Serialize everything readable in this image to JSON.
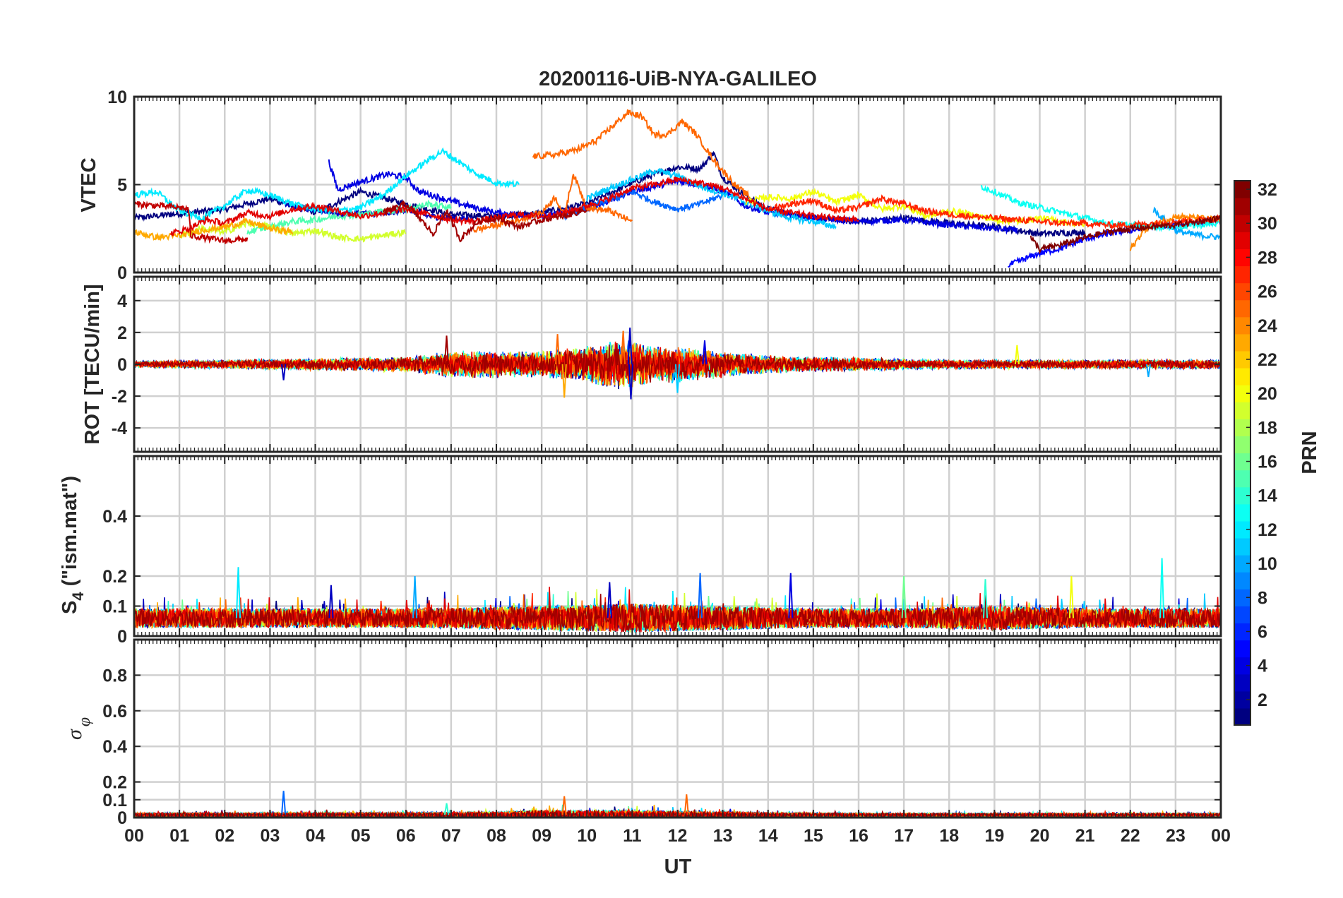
{
  "chart_data": {
    "type": "line",
    "title": "20200116-UiB-NYA-GALILEO",
    "xlabel": "UT",
    "x_tick_labels": [
      "00",
      "01",
      "02",
      "03",
      "04",
      "05",
      "06",
      "07",
      "08",
      "09",
      "10",
      "11",
      "12",
      "13",
      "14",
      "15",
      "16",
      "17",
      "18",
      "19",
      "20",
      "21",
      "22",
      "23",
      "00"
    ],
    "xlim": [
      0,
      24
    ],
    "grid": true,
    "colorbar": {
      "label": "PRN",
      "range": [
        1,
        32
      ],
      "ticks": [
        "2",
        "4",
        "6",
        "8",
        "10",
        "12",
        "14",
        "16",
        "18",
        "20",
        "22",
        "24",
        "26",
        "28",
        "30",
        "32"
      ],
      "colormap": "jet"
    },
    "panels": [
      {
        "id": "vtec",
        "ylabel": "VTEC",
        "ylim": [
          0,
          10
        ],
        "y_ticks": [
          0,
          5,
          10
        ],
        "y_tick_labels": [
          "0",
          "5",
          "10"
        ],
        "series": [
          {
            "prn": 1,
            "x": [
              0,
              2,
              3,
              4,
              5,
              6,
              7,
              8,
              9,
              10,
              11,
              11.5,
              12,
              12.5,
              12.8,
              13,
              13.5,
              14,
              15,
              16,
              17,
              18,
              19,
              20,
              21
            ],
            "y": [
              3.1,
              3.6,
              4.2,
              3.4,
              4.6,
              3.9,
              3.3,
              3.2,
              3.4,
              3.9,
              5.1,
              5.6,
              6.0,
              5.9,
              6.8,
              5.4,
              4.4,
              3.6,
              3.1,
              2.9,
              3.1,
              2.8,
              2.6,
              2.2,
              2.3
            ]
          },
          {
            "prn": 3,
            "x": [
              3.2,
              3.5,
              3.8,
              4.2,
              4.6,
              5.0,
              5.5,
              6.0,
              6.5,
              7.0,
              7.5
            ],
            "y": [
              4.1,
              3.8,
              3.6,
              3.5,
              3.3,
              3.4,
              3.3,
              3.6,
              3.2,
              3.1,
              3.0
            ]
          },
          {
            "prn": 4,
            "x": [
              4.3,
              4.5,
              4.8,
              5.2,
              5.6,
              6.0,
              6.3,
              6.7,
              7.2,
              8.0,
              9.0,
              10.0,
              11.0,
              12.0,
              12.5,
              13.0,
              13.5,
              14.0,
              15.0,
              16.0,
              17.0,
              18.0,
              19.0,
              19.5
            ],
            "y": [
              6.3,
              4.7,
              5.0,
              5.3,
              5.6,
              5.4,
              4.6,
              4.3,
              3.9,
              3.4,
              3.2,
              3.6,
              4.6,
              5.2,
              5.0,
              4.6,
              3.8,
              3.4,
              3.1,
              2.9,
              3.0,
              2.7,
              2.5,
              2.4
            ]
          },
          {
            "prn": 5,
            "x": [
              19.3,
              19.7,
              20.0,
              20.5,
              21.0,
              21.5,
              22.0,
              22.5,
              23.0,
              23.5,
              24.0
            ],
            "y": [
              0.4,
              0.8,
              1.1,
              1.4,
              1.9,
              2.2,
              2.4,
              2.6,
              2.7,
              2.9,
              3.0
            ]
          },
          {
            "prn": 8,
            "x": [
              9.5,
              10.0,
              10.5,
              11.0,
              11.5,
              12.0,
              12.5,
              13.0
            ],
            "y": [
              3.2,
              3.7,
              4.1,
              4.6,
              4.0,
              3.6,
              3.9,
              4.4
            ]
          },
          {
            "prn": 10,
            "x": [
              22.5,
              22.8,
              23.0,
              23.3,
              23.6,
              24.0
            ],
            "y": [
              3.6,
              2.9,
              2.4,
              2.2,
              2.1,
              2.0
            ]
          },
          {
            "prn": 11,
            "x": [
              10.0,
              10.5,
              11.0,
              11.5,
              12.0,
              12.5,
              13.0,
              13.5,
              14.0,
              14.5,
              15.0,
              15.5
            ],
            "y": [
              4.2,
              4.8,
              5.3,
              5.8,
              5.5,
              4.9,
              4.5,
              4.0,
              3.5,
              3.1,
              2.9,
              2.6
            ]
          },
          {
            "prn": 12,
            "x": [
              0,
              0.5,
              1.0,
              1.5,
              2.0,
              2.5,
              3.0,
              3.5,
              4.0,
              4.5,
              5.0,
              5.5,
              6.0,
              6.5,
              6.8,
              7.0,
              7.5,
              8.0,
              8.5
            ],
            "y": [
              4.4,
              4.6,
              3.5,
              3.1,
              3.8,
              4.7,
              4.4,
              3.9,
              3.6,
              3.5,
              3.7,
              4.4,
              5.5,
              6.4,
              6.9,
              6.6,
              5.7,
              5.1,
              5.0
            ]
          },
          {
            "prn": 13,
            "x": [
              18.7,
              19.0,
              19.5,
              20.0,
              20.5,
              21.0,
              21.5,
              22.0,
              22.5,
              23.0,
              23.5,
              24.0
            ],
            "y": [
              4.9,
              4.6,
              4.0,
              3.7,
              3.4,
              3.1,
              2.8,
              2.7,
              2.6,
              2.6,
              2.7,
              2.8
            ]
          },
          {
            "prn": 15,
            "x": [
              2.5,
              3.0,
              3.5,
              4.0,
              4.5,
              5.0,
              5.5,
              6.0,
              6.5,
              7.0
            ],
            "y": [
              2.3,
              2.6,
              2.9,
              3.0,
              3.2,
              3.3,
              3.5,
              3.6,
              3.9,
              3.7
            ]
          },
          {
            "prn": 19,
            "x": [
              1.0,
              1.5,
              2.0,
              2.5,
              3.0,
              3.5,
              4.0,
              4.5,
              5.0,
              5.5,
              6.0
            ],
            "y": [
              2.1,
              2.5,
              2.3,
              2.8,
              2.6,
              2.2,
              2.4,
              2.0,
              1.9,
              2.1,
              2.3
            ]
          },
          {
            "prn": 20,
            "x": [
              13.5,
              14.0,
              14.5,
              15.0,
              15.5,
              16.0,
              16.5,
              17.0,
              17.5,
              18.0,
              18.5,
              19.0,
              19.5,
              20.0,
              20.5,
              21.0
            ],
            "y": [
              4.0,
              4.3,
              4.2,
              4.6,
              4.0,
              4.4,
              3.6,
              3.8,
              3.2,
              3.5,
              3.3,
              3.0,
              2.9,
              3.1,
              2.9,
              2.7
            ]
          },
          {
            "prn": 23,
            "x": [
              0,
              0.5,
              1.0,
              1.5,
              2.0,
              2.5,
              3.0,
              3.5
            ],
            "y": [
              2.3,
              2.0,
              2.1,
              2.4,
              2.6,
              2.9,
              2.5,
              2.3
            ]
          },
          {
            "prn": 25,
            "x": [
              7.5,
              8.0,
              8.5,
              9.0,
              9.3,
              9.5,
              9.7,
              10.0,
              10.5,
              11.0
            ],
            "y": [
              2.4,
              2.7,
              3.0,
              3.4,
              4.3,
              3.2,
              5.6,
              3.7,
              3.5,
              2.9
            ]
          },
          {
            "prn": 24,
            "x": [
              22.0,
              22.3,
              22.6,
              23.0,
              23.5,
              24.0
            ],
            "y": [
              1.3,
              2.4,
              2.8,
              3.2,
              3.1,
              3.0
            ]
          },
          {
            "prn": 25,
            "x": [
              8.8,
              9.3,
              9.8,
              10.2,
              10.6,
              10.9,
              11.2,
              11.5,
              11.8,
              12.1,
              12.4,
              12.8,
              13.0,
              13.3,
              13.6
            ],
            "y": [
              6.6,
              6.7,
              7.0,
              7.5,
              8.4,
              9.1,
              8.9,
              7.8,
              7.9,
              8.6,
              7.9,
              6.4,
              5.8,
              4.9,
              4.3
            ]
          },
          {
            "prn": 27,
            "x": [
              14.0,
              14.5,
              15.0,
              15.5,
              16.0,
              16.5,
              17.0,
              17.5,
              18.0,
              18.5,
              19.0,
              19.5,
              20.0,
              20.5,
              21.0,
              21.5,
              22.0,
              22.5,
              23.0,
              23.5,
              24.0
            ],
            "y": [
              3.6,
              3.9,
              4.1,
              3.5,
              3.7,
              4.2,
              3.9,
              3.5,
              3.3,
              3.2,
              3.1,
              3.0,
              2.9,
              2.8,
              2.8,
              2.7,
              2.7,
              2.8,
              2.9,
              3.0,
              3.1
            ]
          },
          {
            "prn": 29,
            "x": [
              0.8,
              1.2,
              1.6,
              2.0,
              2.5,
              3.0,
              3.5,
              4.0,
              4.5,
              5.0,
              5.5,
              6.0,
              6.5,
              7.0,
              7.5,
              8.0,
              8.5,
              9.0,
              9.5,
              10.0,
              10.5,
              11.0,
              11.5,
              12.0,
              12.5,
              13.0,
              13.5,
              14.0,
              14.5,
              15.0,
              15.5,
              16.0
            ],
            "y": [
              2.2,
              2.5,
              3.0,
              2.8,
              3.4,
              3.2,
              3.6,
              3.8,
              3.5,
              3.2,
              3.4,
              3.6,
              3.3,
              3.0,
              2.9,
              3.1,
              3.3,
              3.2,
              3.4,
              3.8,
              4.2,
              4.8,
              5.0,
              5.3,
              5.1,
              4.8,
              4.2,
              3.6,
              3.4,
              3.2,
              3.1,
              3.0
            ]
          },
          {
            "prn": 30,
            "x": [
              0,
              0.5,
              1.0,
              1.2,
              1.25,
              1.5,
              2.0,
              2.5
            ],
            "y": [
              3.9,
              3.8,
              3.7,
              3.6,
              2.1,
              2.0,
              1.8,
              1.9
            ]
          },
          {
            "prn": 31,
            "x": [
              5.5,
              6.0,
              6.3,
              6.6,
              6.9,
              7.2,
              7.6,
              8.0,
              8.5,
              9.0,
              9.5,
              10.0
            ],
            "y": [
              3.4,
              3.9,
              3.1,
              2.2,
              3.5,
              1.9,
              2.9,
              3.1,
              2.6,
              3.0,
              3.2,
              3.6
            ]
          },
          {
            "prn": 32,
            "x": [
              19.8,
              20.0,
              20.5,
              21.0,
              21.5,
              22.0,
              22.5,
              23.0,
              23.5,
              24.0
            ],
            "y": [
              2.0,
              1.3,
              1.6,
              2.0,
              2.3,
              2.5,
              2.6,
              2.7,
              2.9,
              3.1
            ]
          }
        ]
      },
      {
        "id": "rot",
        "ylabel": "ROT [TECU/min]",
        "ylim": [
          -5.5,
          5.5
        ],
        "y_ticks": [
          -4,
          -2,
          0,
          2,
          4
        ],
        "y_tick_labels": [
          "-4",
          "-2",
          "0",
          "2",
          "4"
        ],
        "baseline": 0,
        "active_intervals": [
          [
            0,
            24
          ]
        ],
        "envelope": {
          "x": [
            0,
            3,
            6,
            7,
            9,
            10,
            10.5,
            11,
            11.5,
            12,
            13,
            14,
            16,
            18,
            20,
            22,
            24
          ],
          "amplitude": [
            0.2,
            0.35,
            0.5,
            0.9,
            0.9,
            1.2,
            1.6,
            1.6,
            1.2,
            1.2,
            0.9,
            0.6,
            0.45,
            0.3,
            0.3,
            0.3,
            0.3
          ]
        },
        "spikes": [
          {
            "x": 6.9,
            "y": 1.8,
            "prn": 31
          },
          {
            "x": 9.35,
            "y": 1.9,
            "prn": 25
          },
          {
            "x": 9.5,
            "y": -2.1,
            "prn": 23
          },
          {
            "x": 10.8,
            "y": 2.1,
            "prn": 25
          },
          {
            "x": 10.95,
            "y": 2.3,
            "prn": 3
          },
          {
            "x": 10.97,
            "y": -2.2,
            "prn": 3
          },
          {
            "x": 12.6,
            "y": 1.5,
            "prn": 4
          },
          {
            "x": 12.0,
            "y": -1.8,
            "prn": 11
          },
          {
            "x": 3.3,
            "y": -1.0,
            "prn": 3
          },
          {
            "x": 19.5,
            "y": 1.2,
            "prn": 20
          },
          {
            "x": 22.4,
            "y": -0.8,
            "prn": 10
          }
        ]
      },
      {
        "id": "s4",
        "ylabel": "S4 (\"ism.mat\")",
        "ylabel_main": "S",
        "ylabel_sub": "4",
        "ylabel_rest": " (\"ism.mat\")",
        "ylim": [
          0,
          0.6
        ],
        "y_ticks": [
          0,
          0.1,
          0.2,
          0.4
        ],
        "y_tick_labels": [
          "0",
          "0.1",
          "0.2",
          "0.4"
        ],
        "baseline": 0.06,
        "envelope": {
          "x": [
            0,
            6,
            9,
            11,
            13,
            15,
            17,
            19,
            21,
            24
          ],
          "amplitude": [
            0.04,
            0.04,
            0.05,
            0.06,
            0.05,
            0.04,
            0.04,
            0.05,
            0.04,
            0.04
          ]
        },
        "spikes": [
          {
            "x": 2.3,
            "y": 0.23,
            "prn": 12
          },
          {
            "x": 4.35,
            "y": 0.17,
            "prn": 3
          },
          {
            "x": 6.2,
            "y": 0.2,
            "prn": 10
          },
          {
            "x": 10.5,
            "y": 0.18,
            "prn": 3
          },
          {
            "x": 12.5,
            "y": 0.21,
            "prn": 8
          },
          {
            "x": 14.5,
            "y": 0.21,
            "prn": 4
          },
          {
            "x": 17.0,
            "y": 0.2,
            "prn": 16
          },
          {
            "x": 18.8,
            "y": 0.19,
            "prn": 14
          },
          {
            "x": 20.7,
            "y": 0.2,
            "prn": 20
          },
          {
            "x": 22.7,
            "y": 0.26,
            "prn": 13
          }
        ]
      },
      {
        "id": "sigma",
        "ylabel": "σφ",
        "ylabel_main": "σ",
        "ylabel_sub": "φ",
        "ylim": [
          0,
          1
        ],
        "y_ticks": [
          0,
          0.1,
          0.2,
          0.4,
          0.6,
          0.8
        ],
        "y_tick_labels": [
          "0",
          "0.1",
          "0.2",
          "0.4",
          "0.6",
          "0.8"
        ],
        "baseline": 0.015,
        "envelope": {
          "x": [
            0,
            6,
            8,
            9,
            10,
            11,
            12,
            13,
            14,
            16,
            24
          ],
          "amplitude": [
            0.012,
            0.015,
            0.02,
            0.035,
            0.03,
            0.03,
            0.025,
            0.02,
            0.015,
            0.01,
            0.01
          ]
        },
        "spikes": [
          {
            "x": 3.3,
            "y": 0.15,
            "prn": 8
          },
          {
            "x": 9.5,
            "y": 0.12,
            "prn": 25
          },
          {
            "x": 12.2,
            "y": 0.13,
            "prn": 25
          },
          {
            "x": 6.9,
            "y": 0.08,
            "prn": 14
          }
        ]
      }
    ]
  }
}
